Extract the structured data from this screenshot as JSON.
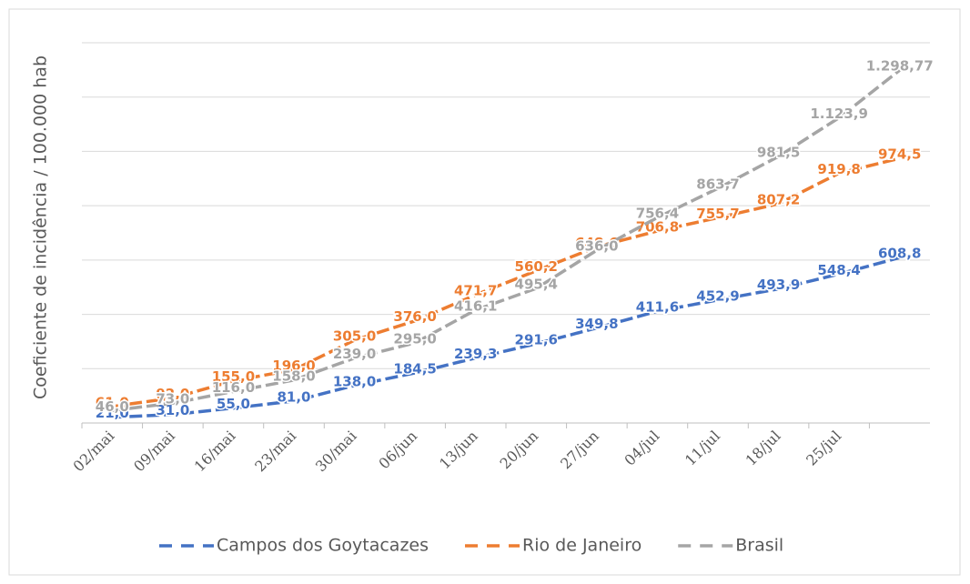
{
  "chart_data": {
    "type": "line",
    "y_label": "Coeficiente de incidência / 100.000 hab",
    "categories": [
      "02/mai",
      "09/mai",
      "16/mai",
      "23/mai",
      "30/mai",
      "06/jun",
      "13/jun",
      "20/jun",
      "27/jun",
      "04/jul",
      "11/jul",
      "18/jul",
      "25/jul",
      null
    ],
    "ylim": [
      0,
      1400
    ],
    "yticks": [
      0,
      200,
      400,
      600,
      800,
      1000,
      1200,
      1400
    ],
    "grid": true,
    "legend": "bottom",
    "series": [
      {
        "name": "Campos dos Goytacazes",
        "color": "#4472c4",
        "values": [
          21.0,
          31.0,
          55.0,
          81.0,
          138.0,
          184.5,
          239.3,
          291.6,
          349.8,
          411.6,
          452.9,
          493.9,
          548.4,
          608.8
        ],
        "value_labels": [
          "21,0",
          "31,0",
          "55,0",
          "81,0",
          "138,0",
          "184,5",
          "239,3",
          "291,6",
          "349,8",
          "411,6",
          "452,9",
          "493,9",
          "548,4",
          "608,8"
        ]
      },
      {
        "name": "Rio de Janeiro",
        "color": "#ed7d31",
        "values": [
          61.0,
          92.0,
          155.0,
          196.0,
          305.0,
          376.0,
          471.7,
          560.2,
          648.6,
          706.8,
          755.7,
          807.2,
          919.8,
          974.5
        ],
        "value_labels": [
          "61,0",
          "92,0",
          "155,0",
          "196,0",
          "305,0",
          "376,0",
          "471,7",
          "560,2",
          "648,6",
          "706,8",
          "755,7",
          "807,2",
          "919,8",
          "974,5"
        ]
      },
      {
        "name": "Brasil",
        "color": "#a5a5a5",
        "values": [
          46.0,
          73.0,
          116.0,
          158.0,
          239.0,
          295.0,
          416.1,
          495.4,
          636.0,
          756.4,
          863.7,
          981.5,
          1123.9,
          1298.77
        ],
        "value_labels": [
          "46,0",
          "73,0",
          "116,0",
          "158,0",
          "239,0",
          "295,0",
          "416,1",
          "495,4",
          "636,0",
          "756,4",
          "863,7",
          "981,5",
          "1.123,9",
          "1.298,77"
        ]
      }
    ]
  }
}
